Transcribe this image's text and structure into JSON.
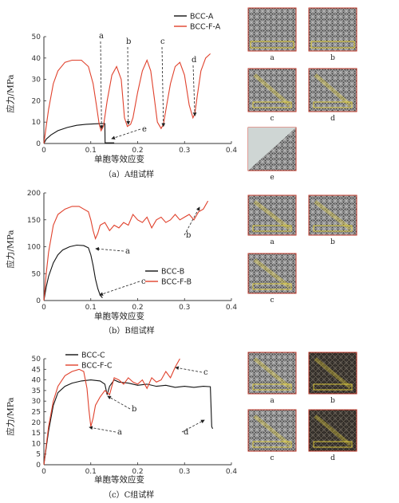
{
  "figure": {
    "captions": [
      "（a）A组试样",
      "（b）B组试样",
      "（c）C组试样"
    ],
    "xlabel": "单胞等效应变",
    "ylabel": "应力/MPa"
  },
  "chart_data": [
    {
      "type": "line",
      "xlabel": "单胞等效应变",
      "ylabel": "应力/MPa",
      "caption": "（a）A组试样",
      "xlim": [
        0,
        0.4
      ],
      "ylim": [
        0,
        50
      ],
      "xticks": [
        "0",
        "0.1",
        "0.2",
        "0.3",
        "0.4"
      ],
      "yticks": [
        "0",
        "10",
        "20",
        "30",
        "40",
        "50"
      ],
      "series": [
        {
          "name": "BCC-A",
          "color": "#111111",
          "x": [
            0,
            0.005,
            0.015,
            0.03,
            0.05,
            0.07,
            0.09,
            0.11,
            0.12,
            0.125,
            0.13,
            0.1305,
            0.14,
            0.15
          ],
          "y": [
            0,
            2,
            4,
            6,
            7.5,
            8.5,
            9,
            9.2,
            9.3,
            9.3,
            9.3,
            0.3,
            0.3,
            0.3
          ]
        },
        {
          "name": "BCC-F-A",
          "color": "#e0412c",
          "x": [
            0,
            0.005,
            0.01,
            0.02,
            0.03,
            0.045,
            0.06,
            0.08,
            0.095,
            0.105,
            0.112,
            0.118,
            0.122,
            0.127,
            0.135,
            0.145,
            0.155,
            0.165,
            0.172,
            0.178,
            0.185,
            0.19,
            0.2,
            0.21,
            0.22,
            0.228,
            0.235,
            0.242,
            0.25,
            0.255,
            0.262,
            0.27,
            0.28,
            0.29,
            0.3,
            0.31,
            0.318,
            0.322,
            0.327,
            0.335,
            0.345,
            0.355
          ],
          "y": [
            0,
            8,
            16,
            28,
            34,
            38,
            39,
            39,
            36,
            28,
            18,
            9,
            6,
            8,
            20,
            32,
            36,
            30,
            12,
            8,
            9,
            12,
            24,
            34,
            39,
            34,
            22,
            10,
            7,
            9,
            18,
            28,
            36,
            38,
            32,
            18,
            12,
            14,
            22,
            34,
            40,
            42
          ]
        }
      ],
      "legend": "top-right",
      "annotations": [
        {
          "text": "a",
          "x": 0.123,
          "y": 7
        },
        {
          "text": "b",
          "x": 0.18,
          "y": 9
        },
        {
          "text": "c",
          "x": 0.255,
          "y": 8
        },
        {
          "text": "d",
          "x": 0.322,
          "y": 13
        },
        {
          "text": "e",
          "x": 0.2,
          "y": 9
        }
      ]
    },
    {
      "type": "line",
      "xlabel": "单胞等效应变",
      "ylabel": "应力/MPa",
      "caption": "（b）B组试样",
      "xlim": [
        0,
        0.4
      ],
      "ylim": [
        0,
        200
      ],
      "xticks": [
        "0",
        "0.1",
        "0.2",
        "0.3",
        "0.4"
      ],
      "yticks": [
        "0",
        "50",
        "100",
        "150",
        "200"
      ],
      "series": [
        {
          "name": "BCC-B",
          "color": "#111111",
          "x": [
            0,
            0.005,
            0.01,
            0.02,
            0.03,
            0.04,
            0.055,
            0.07,
            0.085,
            0.095,
            0.1,
            0.105,
            0.11,
            0.115,
            0.12,
            0.125
          ],
          "y": [
            0,
            25,
            45,
            70,
            85,
            94,
            100,
            103,
            102,
            98,
            85,
            65,
            40,
            22,
            10,
            5
          ]
        },
        {
          "name": "BCC-F-B",
          "color": "#e0412c",
          "x": [
            0,
            0.005,
            0.01,
            0.02,
            0.03,
            0.045,
            0.06,
            0.075,
            0.085,
            0.095,
            0.1,
            0.105,
            0.11,
            0.115,
            0.12,
            0.13,
            0.14,
            0.15,
            0.16,
            0.17,
            0.18,
            0.19,
            0.2,
            0.21,
            0.22,
            0.23,
            0.24,
            0.25,
            0.26,
            0.27,
            0.28,
            0.29,
            0.3,
            0.31,
            0.32,
            0.33,
            0.34,
            0.35
          ],
          "y": [
            0,
            50,
            90,
            140,
            160,
            170,
            175,
            175,
            170,
            165,
            150,
            130,
            115,
            125,
            140,
            145,
            130,
            140,
            135,
            145,
            140,
            160,
            150,
            145,
            155,
            135,
            150,
            155,
            145,
            150,
            160,
            150,
            155,
            160,
            150,
            165,
            170,
            185
          ]
        }
      ],
      "legend": "bottom-right",
      "annotations": [
        {
          "text": "a",
          "x": 0.11,
          "y": 110
        },
        {
          "text": "b",
          "x": 0.335,
          "y": 170
        },
        {
          "text": "c",
          "x": 0.122,
          "y": 8
        }
      ]
    },
    {
      "type": "line",
      "xlabel": "单胞等效应变",
      "ylabel": "应力/MPa",
      "caption": "（c）C组试样",
      "xlim": [
        0,
        0.4
      ],
      "ylim": [
        0,
        50
      ],
      "xticks": [
        "0",
        "0.1",
        "0.2",
        "0.3",
        "0.4"
      ],
      "yticks": [
        "0",
        "5",
        "10",
        "15",
        "20",
        "25",
        "30",
        "35",
        "40",
        "45",
        "50"
      ],
      "series": [
        {
          "name": "BCC-C",
          "color": "#111111",
          "x": [
            0,
            0.005,
            0.01,
            0.02,
            0.03,
            0.045,
            0.06,
            0.08,
            0.1,
            0.12,
            0.13,
            0.135,
            0.14,
            0.15,
            0.16,
            0.18,
            0.2,
            0.22,
            0.24,
            0.26,
            0.28,
            0.3,
            0.32,
            0.34,
            0.355,
            0.358,
            0.36
          ],
          "y": [
            0,
            8,
            16,
            28,
            34,
            37,
            38.5,
            39.5,
            40,
            39.5,
            38,
            33,
            37,
            40,
            39,
            38.5,
            37.5,
            38,
            37,
            37.5,
            36.5,
            37,
            36.5,
            37,
            36.8,
            18,
            17
          ]
        },
        {
          "name": "BCC-F-C",
          "color": "#e0412c",
          "x": [
            0,
            0.005,
            0.01,
            0.02,
            0.03,
            0.045,
            0.06,
            0.075,
            0.085,
            0.092,
            0.096,
            0.1,
            0.105,
            0.11,
            0.12,
            0.13,
            0.14,
            0.15,
            0.16,
            0.17,
            0.18,
            0.19,
            0.2,
            0.21,
            0.22,
            0.23,
            0.24,
            0.25,
            0.26,
            0.27,
            0.28,
            0.29
          ],
          "y": [
            0,
            9,
            18,
            30,
            37,
            42,
            44,
            45,
            44,
            36,
            26,
            18,
            22,
            28,
            32,
            35,
            33,
            41,
            40,
            38,
            41,
            39,
            38,
            40,
            36,
            41,
            39,
            40,
            44,
            41,
            46,
            50
          ]
        }
      ],
      "legend": "top-left",
      "annotations": [
        {
          "text": "a",
          "x": 0.1,
          "y": 18
        },
        {
          "text": "b",
          "x": 0.14,
          "y": 34
        },
        {
          "text": "c",
          "x": 0.285,
          "y": 45
        },
        {
          "text": "d",
          "x": 0.358,
          "y": 18
        }
      ]
    }
  ],
  "thumbnails": [
    {
      "group": "a",
      "labels": [
        "a",
        "b",
        "c",
        "d",
        "e"
      ]
    },
    {
      "group": "b",
      "labels": [
        "a",
        "b",
        "c"
      ]
    },
    {
      "group": "c",
      "labels": [
        "a",
        "b",
        "c",
        "d"
      ]
    }
  ]
}
